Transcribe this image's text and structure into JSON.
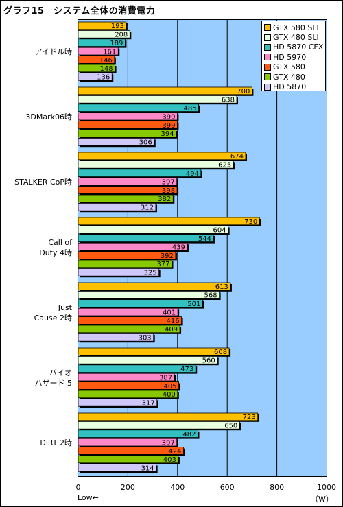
{
  "chart_data": {
    "type": "bar",
    "orientation": "horizontal",
    "title": "グラフ15　システム全体の消費電力",
    "xlabel_low": "Low←",
    "unit": "（W）",
    "xlim": [
      0,
      1000
    ],
    "x_ticks": [
      "0",
      "200",
      "400",
      "600",
      "800",
      "1000"
    ],
    "categories": [
      "アイドル時",
      "3DMark06時",
      "STALKER CoP時",
      "Call of\nDuty 4時",
      "Just\nCause 2時",
      "バイオ\nハザード 5",
      "DiRT 2時"
    ],
    "series": [
      {
        "name": "GTX 580 SLI",
        "color": "#ffc000",
        "values": [
          193,
          700,
          674,
          730,
          613,
          608,
          723
        ]
      },
      {
        "name": "GTX 480 SLI",
        "color": "#e8ffe0",
        "values": [
          208,
          638,
          625,
          604,
          568,
          560,
          650
        ]
      },
      {
        "name": "HD 5870 CFX",
        "color": "#33c0c0",
        "values": [
          189,
          485,
          494,
          544,
          501,
          473,
          482
        ]
      },
      {
        "name": "HD 5970",
        "color": "#ff88c8",
        "values": [
          161,
          399,
          397,
          439,
          401,
          387,
          397
        ]
      },
      {
        "name": "GTX 580",
        "color": "#ff5a10",
        "values": [
          146,
          399,
          398,
          392,
          416,
          405,
          424
        ]
      },
      {
        "name": "GTX 480",
        "color": "#88c800",
        "values": [
          148,
          394,
          382,
          377,
          409,
          400,
          403
        ]
      },
      {
        "name": "HD 5870",
        "color": "#d0c8f8",
        "values": [
          136,
          306,
          312,
          325,
          303,
          317,
          314
        ]
      }
    ],
    "grid": true,
    "legend_position": "top-right"
  }
}
